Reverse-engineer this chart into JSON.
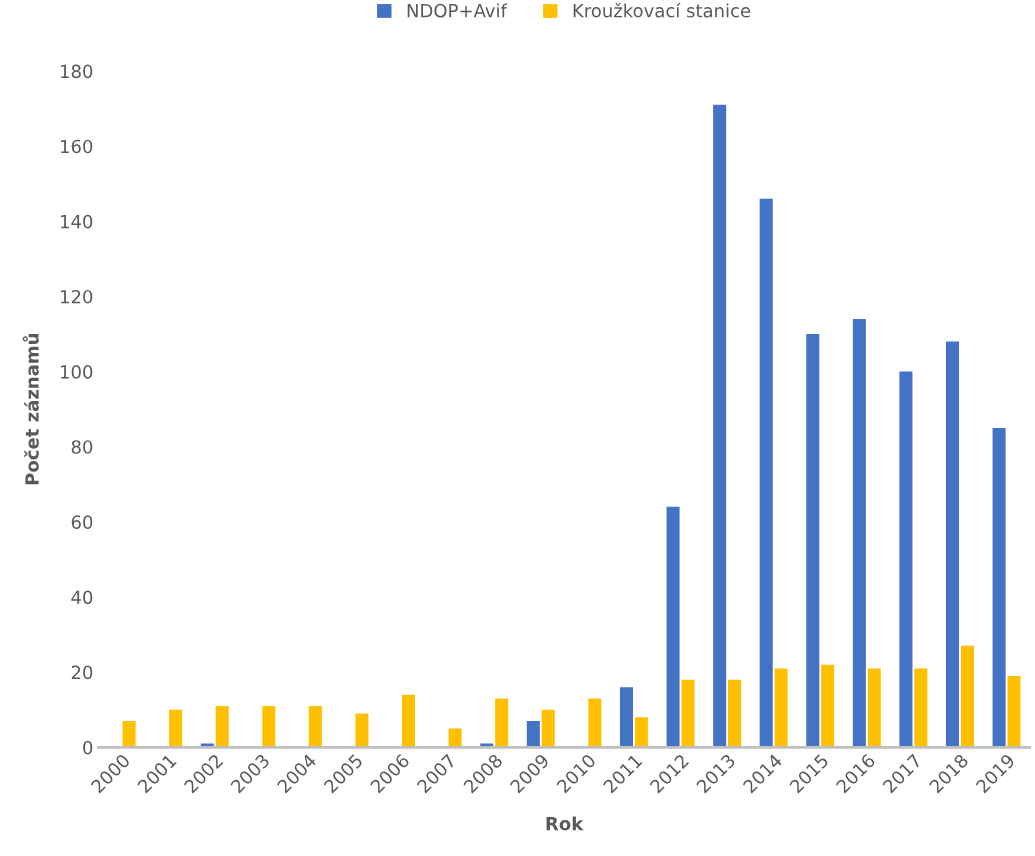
{
  "chart_data": {
    "type": "bar",
    "xlabel": "Rok",
    "ylabel": "Počet záznamů",
    "categories": [
      "2000",
      "2001",
      "2002",
      "2003",
      "2004",
      "2005",
      "2006",
      "2007",
      "2008",
      "2009",
      "2010",
      "2011",
      "2012",
      "2013",
      "2014",
      "2015",
      "2016",
      "2017",
      "2018",
      "2019"
    ],
    "series": [
      {
        "name": "NDOP+Avif",
        "color": "#4472c4",
        "values": [
          0,
          0,
          1,
          0,
          0,
          0,
          0,
          0,
          1,
          7,
          0,
          16,
          64,
          171,
          146,
          110,
          114,
          100,
          108,
          85
        ]
      },
      {
        "name": "Kroužkovací stanice",
        "color": "#ffc000",
        "values": [
          7,
          10,
          11,
          11,
          11,
          9,
          14,
          5,
          13,
          10,
          13,
          8,
          18,
          18,
          21,
          22,
          21,
          21,
          27,
          19
        ]
      }
    ],
    "ylim": [
      0,
      180
    ],
    "yticks": [
      0,
      20,
      40,
      60,
      80,
      100,
      120,
      140,
      160,
      180
    ],
    "grid": false,
    "legend": "top"
  }
}
